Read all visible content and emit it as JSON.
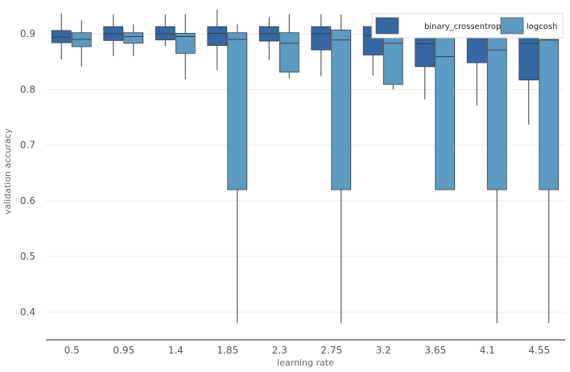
{
  "chart_data": {
    "type": "boxplot",
    "title": "",
    "xlabel": "learning rate",
    "ylabel": "validation accuracy",
    "ylim": [
      0.35,
      0.955
    ],
    "yticks": [
      0.4,
      0.5,
      0.6,
      0.7,
      0.8,
      0.9
    ],
    "ytick_labels": [
      "0.4",
      "0.5",
      "0.6",
      "0.7",
      "0.8",
      "0.9"
    ],
    "categories": [
      "0.5",
      "0.95",
      "1.4",
      "1.85",
      "2.3",
      "2.75",
      "3.2",
      "3.65",
      "4.1",
      "4.55"
    ],
    "grid": true,
    "legend_position": "top-right",
    "series": [
      {
        "name": "binary_crossentropy",
        "color": "#3368a5",
        "boxes": [
          {
            "min": 0.854,
            "q1": 0.884,
            "median": 0.894,
            "q3": 0.906,
            "max": 0.937
          },
          {
            "min": 0.86,
            "q1": 0.888,
            "median": 0.9,
            "q3": 0.913,
            "max": 0.935
          },
          {
            "min": 0.878,
            "q1": 0.889,
            "median": 0.9,
            "q3": 0.913,
            "max": 0.935
          },
          {
            "min": 0.835,
            "q1": 0.879,
            "median": 0.901,
            "q3": 0.913,
            "max": 0.943
          },
          {
            "min": 0.853,
            "q1": 0.887,
            "median": 0.9,
            "q3": 0.913,
            "max": 0.93
          },
          {
            "min": 0.824,
            "q1": 0.871,
            "median": 0.9,
            "q3": 0.913,
            "max": 0.935
          },
          {
            "min": 0.825,
            "q1": 0.862,
            "median": 0.897,
            "q3": 0.913,
            "max": 0.928
          },
          {
            "min": 0.782,
            "q1": 0.841,
            "median": 0.882,
            "q3": 0.906,
            "max": 0.92
          },
          {
            "min": 0.771,
            "q1": 0.848,
            "median": 0.895,
            "q3": 0.906,
            "max": 0.92
          },
          {
            "min": 0.737,
            "q1": 0.817,
            "median": 0.883,
            "q3": 0.901,
            "max": 0.915
          }
        ]
      },
      {
        "name": "logcosh",
        "color": "#5b9bc4",
        "boxes": [
          {
            "min": 0.841,
            "q1": 0.877,
            "median": 0.89,
            "q3": 0.902,
            "max": 0.925
          },
          {
            "min": 0.86,
            "q1": 0.883,
            "median": 0.895,
            "q3": 0.902,
            "max": 0.917
          },
          {
            "min": 0.818,
            "q1": 0.865,
            "median": 0.895,
            "q3": 0.901,
            "max": 0.935
          },
          {
            "min": 0.38,
            "q1": 0.62,
            "median": 0.89,
            "q3": 0.902,
            "max": 0.917
          },
          {
            "min": 0.82,
            "q1": 0.831,
            "median": 0.883,
            "q3": 0.902,
            "max": 0.935
          },
          {
            "min": 0.38,
            "q1": 0.62,
            "median": 0.889,
            "q3": 0.907,
            "max": 0.935
          },
          {
            "min": 0.8,
            "q1": 0.809,
            "median": 0.883,
            "q3": 0.902,
            "max": 0.92
          },
          {
            "min": 0.62,
            "q1": 0.62,
            "median": 0.859,
            "q3": 0.902,
            "max": 0.92
          },
          {
            "min": 0.38,
            "q1": 0.62,
            "median": 0.871,
            "q3": 0.907,
            "max": 0.925
          },
          {
            "min": 0.38,
            "q1": 0.62,
            "median": 0.889,
            "q3": 0.89,
            "max": 0.89
          }
        ]
      }
    ]
  }
}
